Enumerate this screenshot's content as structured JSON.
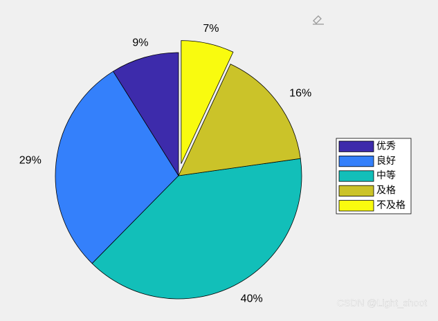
{
  "chart_data": {
    "type": "pie",
    "categories": [
      "优秀",
      "良好",
      "中等",
      "及格",
      "不及格"
    ],
    "values": [
      9,
      29,
      40,
      16,
      7
    ],
    "value_labels": [
      "9%",
      "29%",
      "40%",
      "16%",
      "7%"
    ],
    "colors": [
      "#3d2bab",
      "#3480fb",
      "#12bfb9",
      "#cbc329",
      "#f9fb0f"
    ],
    "explode": [
      false,
      false,
      false,
      false,
      true
    ],
    "legend": "right"
  },
  "watermark": "CSDN @Light_shoot"
}
